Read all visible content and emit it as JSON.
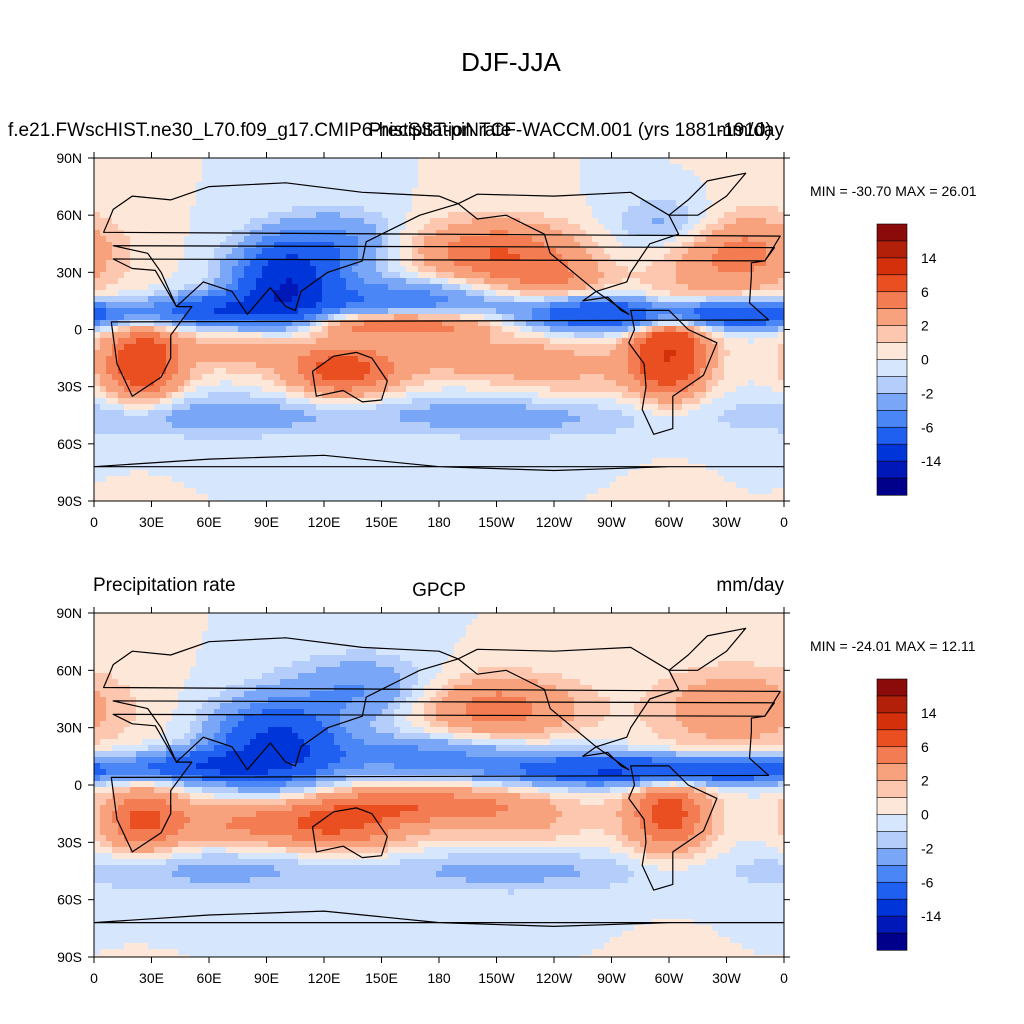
{
  "figure": {
    "title": "DJF-JJA"
  },
  "palette": {
    "levels": [
      -14,
      -10,
      -6,
      -4,
      -2,
      -1,
      0,
      1,
      2,
      4,
      6,
      10,
      14
    ],
    "colors": [
      "#00008a",
      "#0018b8",
      "#0036d9",
      "#2060f0",
      "#4a86f5",
      "#7aa6f8",
      "#b4cdfb",
      "#d6e6fd",
      "#fde7d8",
      "#fcc7ae",
      "#f8a27d",
      "#f47c52",
      "#ea4f22",
      "#d4300c",
      "#b3200a",
      "#8b0b0b"
    ],
    "land_outline": "#000000",
    "frame": "#000000"
  },
  "chart_data": [
    {
      "type": "heatmap",
      "left_label": "f.e21.FWscHIST.ne30_L70.f09_g17.CMIP6-histSST-piNTCF-WACCM.001 (yrs 1881-1910)",
      "center_label": "Precipitation rate",
      "right_label": "mm/day",
      "stats": "MIN = -30.70 MAX =  26.01",
      "xticks": [
        "0",
        "30E",
        "60E",
        "90E",
        "120E",
        "150E",
        "180",
        "150W",
        "120W",
        "90W",
        "60W",
        "30W",
        "0"
      ],
      "yticks": [
        "90N",
        "60N",
        "30N",
        "0",
        "30S",
        "60S",
        "90S"
      ],
      "xlim": [
        0,
        360
      ],
      "ylim": [
        -90,
        90
      ],
      "colorbar_labels": [
        "14",
        "6",
        "2",
        "0",
        "-2",
        "-6",
        "-14"
      ],
      "min": -30.7,
      "max": 26.01
    },
    {
      "type": "heatmap",
      "left_label": "Precipitation rate",
      "center_label": "GPCP",
      "right_label": "mm/day",
      "stats": "MIN = -24.01 MAX =  12.11",
      "xticks": [
        "0",
        "30E",
        "60E",
        "90E",
        "120E",
        "150E",
        "180",
        "150W",
        "120W",
        "90W",
        "60W",
        "30W",
        "0"
      ],
      "yticks": [
        "90N",
        "60N",
        "30N",
        "0",
        "30S",
        "60S",
        "90S"
      ],
      "xlim": [
        0,
        360
      ],
      "ylim": [
        -90,
        90
      ],
      "colorbar_labels": [
        "14",
        "6",
        "2",
        "0",
        "-2",
        "-6",
        "-14"
      ],
      "min": -24.01,
      "max": 12.11
    }
  ]
}
